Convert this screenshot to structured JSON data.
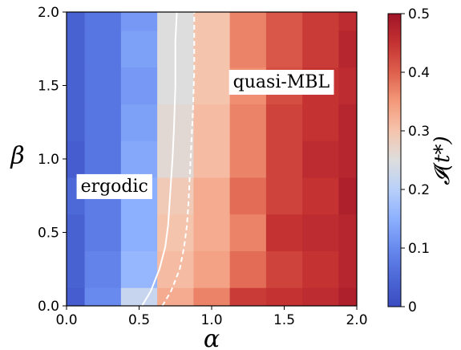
{
  "chart_data": {
    "type": "heatmap",
    "xlabel": "α",
    "ylabel": "β",
    "xlim": [
      0.0,
      2.0
    ],
    "ylim": [
      0.0,
      2.0
    ],
    "x_ticks": [
      "0.0",
      "0.5",
      "1.0",
      "1.5",
      "2.0"
    ],
    "y_ticks": [
      "0.0",
      "0.5",
      "1.0",
      "1.5",
      "2.0"
    ],
    "grid": false,
    "colorbar": {
      "label": "𝓘(t*)",
      "range": [
        0,
        0.5
      ],
      "ticks": [
        "0",
        "0.1",
        "0.2",
        "0.3",
        "0.4",
        "0.5"
      ],
      "colormap": "coolwarm-like (blue → cream → red)"
    },
    "x_centers": [
      0.0,
      0.25,
      0.5,
      0.75,
      1.0,
      1.25,
      1.5,
      1.75,
      2.0
    ],
    "y_centers": [
      0.0,
      0.25,
      0.5,
      0.75,
      1.0,
      1.25,
      1.5,
      1.75,
      2.0
    ],
    "z": [
      [
        0.03,
        0.1,
        0.22,
        0.33,
        0.37,
        0.44,
        0.45,
        0.46,
        0.48
      ],
      [
        0.04,
        0.09,
        0.16,
        0.31,
        0.34,
        0.39,
        0.43,
        0.45,
        0.47
      ],
      [
        0.04,
        0.08,
        0.15,
        0.3,
        0.33,
        0.37,
        0.45,
        0.46,
        0.47
      ],
      [
        0.05,
        0.08,
        0.15,
        0.29,
        0.33,
        0.39,
        0.43,
        0.45,
        0.48
      ],
      [
        0.03,
        0.07,
        0.14,
        0.26,
        0.31,
        0.37,
        0.43,
        0.46,
        0.47
      ],
      [
        0.04,
        0.07,
        0.13,
        0.26,
        0.31,
        0.37,
        0.43,
        0.45,
        0.47
      ],
      [
        0.04,
        0.07,
        0.12,
        0.25,
        0.3,
        0.36,
        0.42,
        0.45,
        0.46
      ],
      [
        0.04,
        0.07,
        0.13,
        0.25,
        0.3,
        0.37,
        0.41,
        0.44,
        0.47
      ],
      [
        0.04,
        0.07,
        0.12,
        0.25,
        0.3,
        0.37,
        0.41,
        0.44,
        0.46
      ]
    ],
    "boundary_solid": {
      "x": [
        0.52,
        0.58,
        0.64,
        0.68,
        0.7,
        0.71,
        0.72,
        0.73,
        0.74,
        0.75,
        0.75,
        0.76
      ],
      "y": [
        0.0,
        0.1,
        0.25,
        0.4,
        0.55,
        0.7,
        0.85,
        1.0,
        1.2,
        1.5,
        1.8,
        2.0
      ]
    },
    "boundary_dashed": {
      "x": [
        0.66,
        0.72,
        0.78,
        0.81,
        0.83,
        0.84,
        0.85,
        0.86,
        0.87,
        0.88,
        0.88
      ],
      "y": [
        0.0,
        0.1,
        0.25,
        0.4,
        0.55,
        0.7,
        0.9,
        1.1,
        1.3,
        1.6,
        2.0
      ]
    },
    "annotations": [
      {
        "text": "ergodic",
        "x": 0.33,
        "y": 0.82
      },
      {
        "text": "quasi-MBL",
        "x": 1.48,
        "y": 1.53
      }
    ]
  }
}
